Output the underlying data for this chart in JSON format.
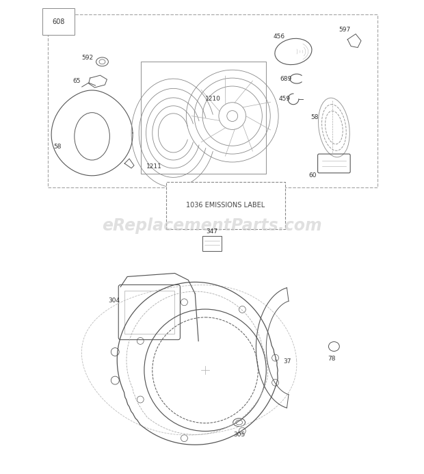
{
  "bg_color": "#ffffff",
  "line_color": "#555555",
  "text_color": "#333333",
  "watermark_color": "#cccccc",
  "watermark_text": "eReplacementParts.com",
  "emissions_label_text": "1036 EMISSIONS LABEL"
}
